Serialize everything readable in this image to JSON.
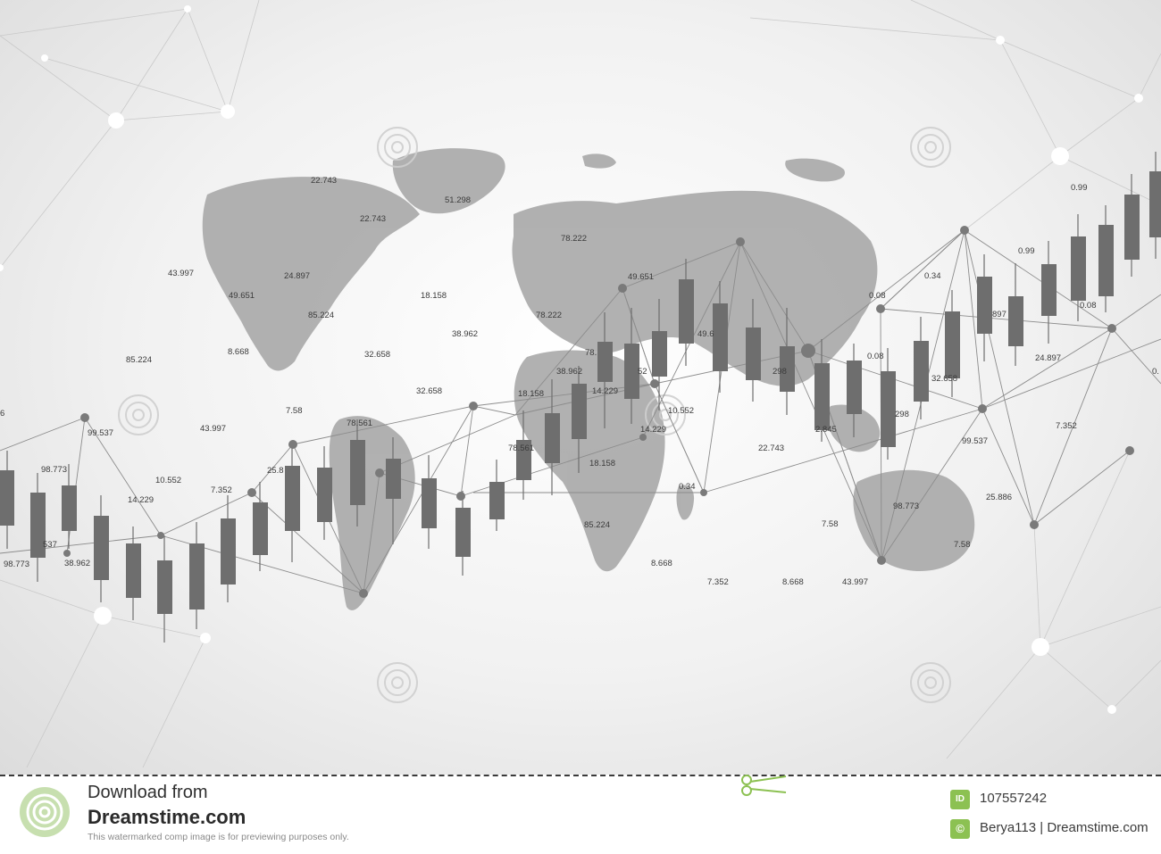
{
  "chart_labels": [
    "22.743",
    "51.298",
    "22.743",
    "78.222",
    "43.997",
    "24.897",
    "49.651",
    "18.158",
    "85.224",
    "78.222",
    "49.651",
    "38.962",
    "85.224",
    "8.668",
    "32.658",
    "32.658",
    "18.158",
    "38.962",
    "14.229",
    "99.537",
    "7.58",
    "78.561",
    "43.997",
    "10.552",
    "14.229",
    "22.743",
    "98.773",
    "10.552",
    "7.352",
    "25.8",
    "14.229",
    "18.158",
    "0.34",
    "537",
    "98.773",
    "38.962",
    "85.224",
    "7.58",
    "98.773",
    "25.886",
    "7.58",
    "8.668",
    "7.352",
    "8.668",
    "43.997",
    "0.08",
    "0.34",
    "0.99",
    "0.99",
    "0.08",
    "24.897",
    "7.352",
    "99.537",
    "32.658",
    "298",
    "0.08",
    "2.845",
    "298",
    "49.6",
    "78.",
    "52",
    "78.561",
    "897",
    "0.",
    "6"
  ],
  "footer": {
    "download_line1": "Download from",
    "download_line2": "Dreamstime.com",
    "disclaimer": "This watermarked comp image is for previewing purposes only.",
    "id_badge": "ID",
    "image_id": "107557242",
    "copyright_badge": "©",
    "credit": "Berya113 | Dreamstime.com"
  },
  "colors": {
    "map": "#a9a9a9",
    "candle": "#6e6e6e",
    "network": "#8c8c8c",
    "node": "#7a7a7a",
    "accent_green": "#8cc152"
  },
  "icons": [
    "dreamstime-logo-icon",
    "scissors-icon",
    "id-icon",
    "copyright-icon"
  ]
}
